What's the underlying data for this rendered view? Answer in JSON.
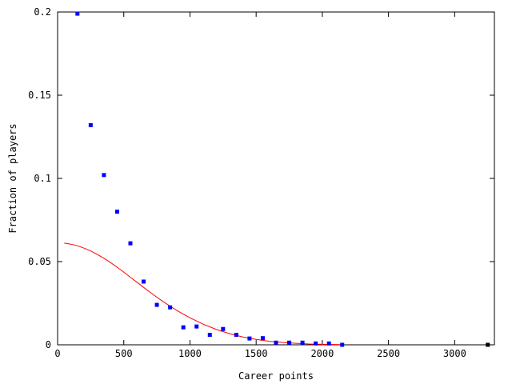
{
  "chart_data": {
    "type": "scatter",
    "title": "",
    "xlabel": "Career points",
    "ylabel": "Fraction of players",
    "xlim": [
      0,
      3300
    ],
    "ylim": [
      0,
      0.2
    ],
    "xticks": [
      0,
      500,
      1000,
      1500,
      2000,
      2500,
      3000
    ],
    "xtick_labels": [
      "0",
      "500",
      "1000",
      "1500",
      "2000",
      "2500",
      "3000"
    ],
    "yticks": [
      0,
      0.05,
      0.1,
      0.15,
      0.2
    ],
    "ytick_labels": [
      "0",
      "0.05",
      "0.1",
      "0.15",
      "0.2"
    ],
    "grid": false,
    "legend": "none",
    "series": [
      {
        "type": "scatter",
        "color": "#0000ff",
        "x": [
          150,
          250,
          350,
          450,
          550,
          650,
          750,
          850,
          950,
          1050,
          1150,
          1250,
          1350,
          1450,
          1550,
          1650,
          1750,
          1850,
          1950,
          2050,
          2150
        ],
        "y": [
          0.199,
          0.132,
          0.102,
          0.08,
          0.061,
          0.038,
          0.024,
          0.0225,
          0.0105,
          0.011,
          0.006,
          0.0095,
          0.006,
          0.0038,
          0.004,
          0.0013,
          0.0013,
          0.0013,
          0.0008,
          0.0008,
          0.0
        ]
      },
      {
        "type": "scatter",
        "color": "#000000",
        "x": [
          3250
        ],
        "y": [
          0.0
        ]
      },
      {
        "type": "line",
        "color": "#ff0000",
        "x": [
          50,
          100,
          150,
          200,
          250,
          300,
          350,
          400,
          450,
          500,
          550,
          600,
          650,
          700,
          750,
          800,
          850,
          900,
          950,
          1000,
          1100,
          1200,
          1300,
          1400,
          1500,
          1600,
          1700,
          1800,
          1900,
          2000,
          2100,
          2150
        ],
        "y": [
          0.0611,
          0.0605,
          0.0595,
          0.0581,
          0.0564,
          0.0543,
          0.052,
          0.0494,
          0.0466,
          0.0437,
          0.0406,
          0.0376,
          0.0345,
          0.0315,
          0.0286,
          0.0258,
          0.0232,
          0.0207,
          0.0184,
          0.0162,
          0.0124,
          0.0092,
          0.0067,
          0.0047,
          0.0032,
          0.0021,
          0.0014,
          0.0009,
          0.0005,
          0.0003,
          0.0002,
          0.0001
        ]
      }
    ]
  }
}
